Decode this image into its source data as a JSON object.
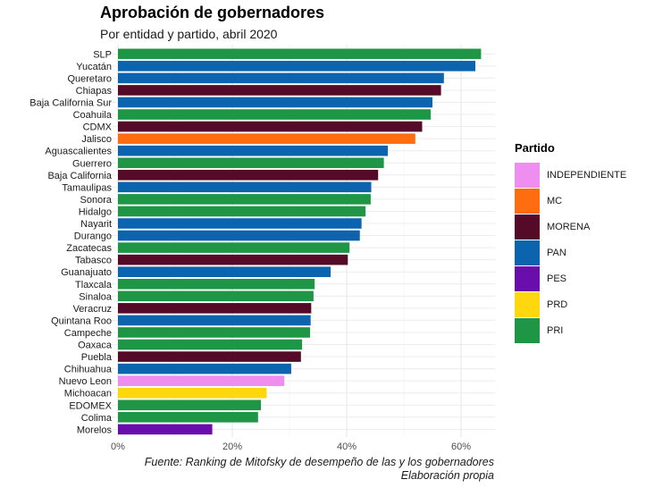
{
  "chart_data": {
    "type": "bar",
    "orientation": "horizontal",
    "title": "Aprobación de gobernadores",
    "subtitle": "Por entidad y partido, abril 2020",
    "caption": [
      "Fuente: Ranking de Mitofsky de desempeño de las y los gobernadores",
      "Elaboración propia"
    ],
    "xlim": [
      0,
      66
    ],
    "x_ticks": [
      0,
      20,
      40,
      60
    ],
    "x_tick_labels": [
      "0%",
      "20%",
      "40%",
      "60%"
    ],
    "grid": true,
    "legend": {
      "title": "Partido",
      "position": "right",
      "entries": [
        {
          "name": "INDEPENDIENTE",
          "color": "#EE8EF1"
        },
        {
          "name": "MC",
          "color": "#FF6D10"
        },
        {
          "name": "MORENA",
          "color": "#550A27"
        },
        {
          "name": "PAN",
          "color": "#0D64AE"
        },
        {
          "name": "PES",
          "color": "#6A0DAD"
        },
        {
          "name": "PRD",
          "color": "#FFD70F"
        },
        {
          "name": "PRI",
          "color": "#1E9646"
        }
      ]
    },
    "bars": [
      {
        "state": "SLP",
        "value": 63.5,
        "party": "PRI"
      },
      {
        "state": "Yucatán",
        "value": 62.5,
        "party": "PAN"
      },
      {
        "state": "Queretaro",
        "value": 57.0,
        "party": "PAN"
      },
      {
        "state": "Chiapas",
        "value": 56.5,
        "party": "MORENA"
      },
      {
        "state": "Baja California Sur",
        "value": 55.0,
        "party": "PAN"
      },
      {
        "state": "Coahuila",
        "value": 54.7,
        "party": "PRI"
      },
      {
        "state": "CDMX",
        "value": 53.2,
        "party": "MORENA"
      },
      {
        "state": "Jalisco",
        "value": 52.0,
        "party": "MC"
      },
      {
        "state": "Aguascalientes",
        "value": 47.2,
        "party": "PAN"
      },
      {
        "state": "Guerrero",
        "value": 46.5,
        "party": "PRI"
      },
      {
        "state": "Baja California",
        "value": 45.5,
        "party": "MORENA"
      },
      {
        "state": "Tamaulipas",
        "value": 44.3,
        "party": "PAN"
      },
      {
        "state": "Sonora",
        "value": 44.2,
        "party": "PRI"
      },
      {
        "state": "Hidalgo",
        "value": 43.3,
        "party": "PRI"
      },
      {
        "state": "Nayarit",
        "value": 42.6,
        "party": "PAN"
      },
      {
        "state": "Durango",
        "value": 42.3,
        "party": "PAN"
      },
      {
        "state": "Zacatecas",
        "value": 40.5,
        "party": "PRI"
      },
      {
        "state": "Tabasco",
        "value": 40.2,
        "party": "MORENA"
      },
      {
        "state": "Guanajuato",
        "value": 37.2,
        "party": "PAN"
      },
      {
        "state": "Tlaxcala",
        "value": 34.4,
        "party": "PRI"
      },
      {
        "state": "Sinaloa",
        "value": 34.2,
        "party": "PRI"
      },
      {
        "state": "Veracruz",
        "value": 33.8,
        "party": "MORENA"
      },
      {
        "state": "Quintana Roo",
        "value": 33.7,
        "party": "PAN"
      },
      {
        "state": "Campeche",
        "value": 33.6,
        "party": "PRI"
      },
      {
        "state": "Oaxaca",
        "value": 32.2,
        "party": "PRI"
      },
      {
        "state": "Puebla",
        "value": 32.0,
        "party": "MORENA"
      },
      {
        "state": "Chihuahua",
        "value": 30.3,
        "party": "PAN"
      },
      {
        "state": "Nuevo Leon",
        "value": 29.1,
        "party": "INDEPENDIENTE"
      },
      {
        "state": "Michoacan",
        "value": 26.0,
        "party": "PRD"
      },
      {
        "state": "EDOMEX",
        "value": 25.0,
        "party": "PRI"
      },
      {
        "state": "Colima",
        "value": 24.5,
        "party": "PRI"
      },
      {
        "state": "Morelos",
        "value": 16.5,
        "party": "PES"
      }
    ]
  }
}
